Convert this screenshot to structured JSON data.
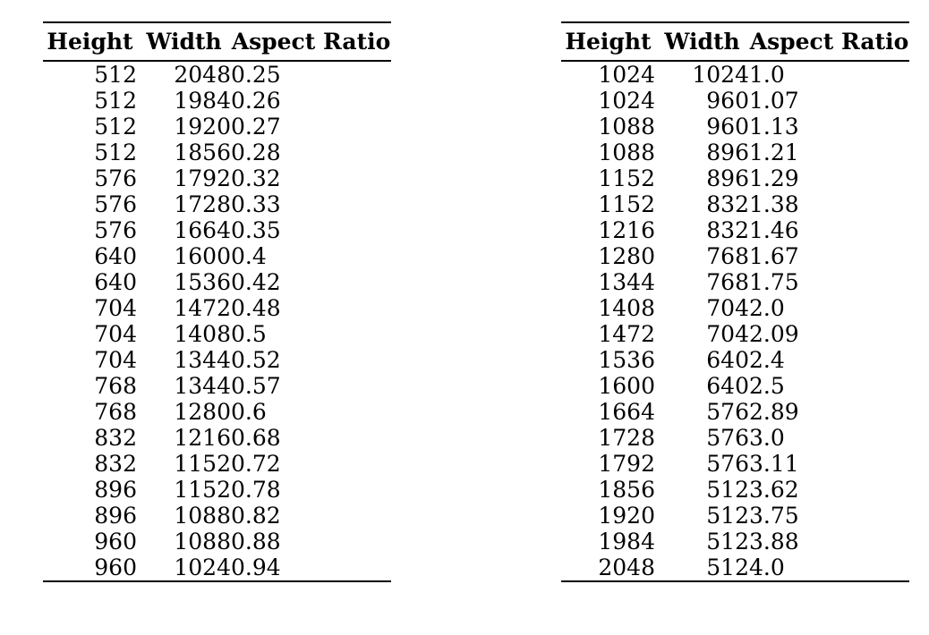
{
  "page": {
    "background_color": "#ffffff",
    "text_color": "#000000",
    "rule_color": "#000000"
  },
  "tables": [
    {
      "name": "aspect-ratio-table-left",
      "columns": [
        "Height",
        "Width",
        "Aspect Ratio"
      ],
      "rows": [
        [
          "512",
          "2048",
          "0.25"
        ],
        [
          "512",
          "1984",
          "0.26"
        ],
        [
          "512",
          "1920",
          "0.27"
        ],
        [
          "512",
          "1856",
          "0.28"
        ],
        [
          "576",
          "1792",
          "0.32"
        ],
        [
          "576",
          "1728",
          "0.33"
        ],
        [
          "576",
          "1664",
          "0.35"
        ],
        [
          "640",
          "1600",
          "0.4"
        ],
        [
          "640",
          "1536",
          "0.42"
        ],
        [
          "704",
          "1472",
          "0.48"
        ],
        [
          "704",
          "1408",
          "0.5"
        ],
        [
          "704",
          "1344",
          "0.52"
        ],
        [
          "768",
          "1344",
          "0.57"
        ],
        [
          "768",
          "1280",
          "0.6"
        ],
        [
          "832",
          "1216",
          "0.68"
        ],
        [
          "832",
          "1152",
          "0.72"
        ],
        [
          "896",
          "1152",
          "0.78"
        ],
        [
          "896",
          "1088",
          "0.82"
        ],
        [
          "960",
          "1088",
          "0.88"
        ],
        [
          "960",
          "1024",
          "0.94"
        ]
      ]
    },
    {
      "name": "aspect-ratio-table-right",
      "columns": [
        "Height",
        "Width",
        "Aspect Ratio"
      ],
      "rows": [
        [
          "1024",
          "1024",
          "1.0"
        ],
        [
          "1024",
          "960",
          "1.07"
        ],
        [
          "1088",
          "960",
          "1.13"
        ],
        [
          "1088",
          "896",
          "1.21"
        ],
        [
          "1152",
          "896",
          "1.29"
        ],
        [
          "1152",
          "832",
          "1.38"
        ],
        [
          "1216",
          "832",
          "1.46"
        ],
        [
          "1280",
          "768",
          "1.67"
        ],
        [
          "1344",
          "768",
          "1.75"
        ],
        [
          "1408",
          "704",
          "2.0"
        ],
        [
          "1472",
          "704",
          "2.09"
        ],
        [
          "1536",
          "640",
          "2.4"
        ],
        [
          "1600",
          "640",
          "2.5"
        ],
        [
          "1664",
          "576",
          "2.89"
        ],
        [
          "1728",
          "576",
          "3.0"
        ],
        [
          "1792",
          "576",
          "3.11"
        ],
        [
          "1856",
          "512",
          "3.62"
        ],
        [
          "1920",
          "512",
          "3.75"
        ],
        [
          "1984",
          "512",
          "3.88"
        ],
        [
          "2048",
          "512",
          "4.0"
        ]
      ]
    }
  ]
}
